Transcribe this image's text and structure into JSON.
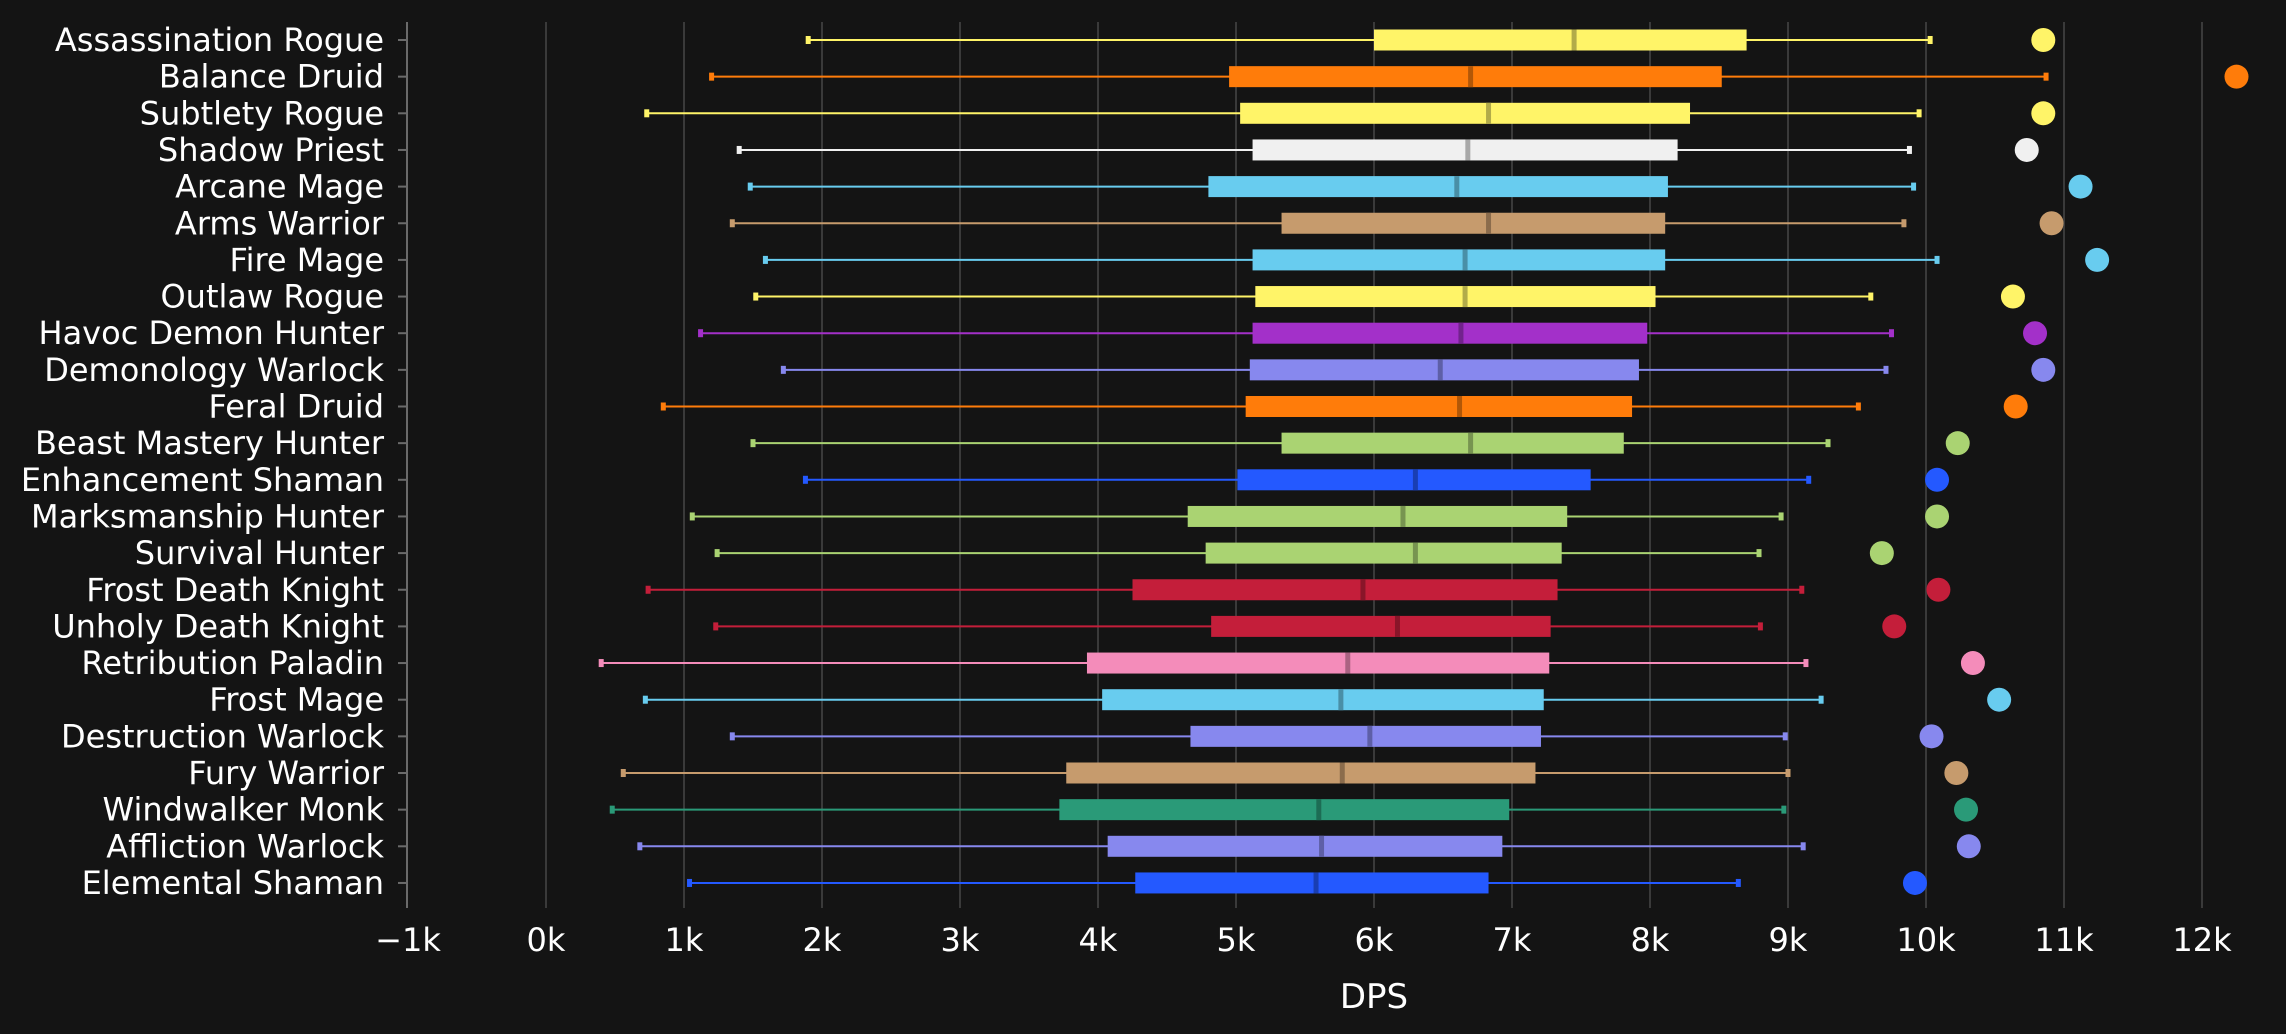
{
  "chart_data": {
    "type": "boxplot-horizontal",
    "xlabel": "DPS",
    "xlim": [
      -1000,
      12500
    ],
    "x_ticks": [
      {
        "value": -1000,
        "label": "−1k"
      },
      {
        "value": 0,
        "label": "0k"
      },
      {
        "value": 1000,
        "label": "1k"
      },
      {
        "value": 2000,
        "label": "2k"
      },
      {
        "value": 3000,
        "label": "3k"
      },
      {
        "value": 4000,
        "label": "4k"
      },
      {
        "value": 5000,
        "label": "5k"
      },
      {
        "value": 6000,
        "label": "6k"
      },
      {
        "value": 7000,
        "label": "7k"
      },
      {
        "value": 8000,
        "label": "8k"
      },
      {
        "value": 9000,
        "label": "9k"
      },
      {
        "value": 10000,
        "label": "10k"
      },
      {
        "value": 11000,
        "label": "11k"
      },
      {
        "value": 12000,
        "label": "12k"
      }
    ],
    "grid": "vertical",
    "series": [
      {
        "name": "Assassination Rogue",
        "color": "#FFF468",
        "min": 1900,
        "q1": 6000,
        "median": 7450,
        "q3": 8700,
        "max": 10030,
        "top": 10850
      },
      {
        "name": "Balance Druid",
        "color": "#FF7C0A",
        "min": 1200,
        "q1": 4950,
        "median": 6700,
        "q3": 8520,
        "max": 10870,
        "top": 12250
      },
      {
        "name": "Subtlety Rogue",
        "color": "#FFF468",
        "min": 730,
        "q1": 5030,
        "median": 6830,
        "q3": 8290,
        "max": 9950,
        "top": 10850
      },
      {
        "name": "Shadow Priest",
        "color": "#F0F0F0",
        "min": 1400,
        "q1": 5120,
        "median": 6680,
        "q3": 8200,
        "max": 9880,
        "top": 10730
      },
      {
        "name": "Arcane Mage",
        "color": "#68CCEF",
        "min": 1480,
        "q1": 4800,
        "median": 6600,
        "q3": 8130,
        "max": 9910,
        "top": 11120
      },
      {
        "name": "Arms Warrior",
        "color": "#C69B6D",
        "min": 1350,
        "q1": 5330,
        "median": 6830,
        "q3": 8110,
        "max": 9840,
        "top": 10910
      },
      {
        "name": "Fire Mage",
        "color": "#68CCEF",
        "min": 1590,
        "q1": 5120,
        "median": 6660,
        "q3": 8110,
        "max": 10080,
        "top": 11240
      },
      {
        "name": "Outlaw Rogue",
        "color": "#FFF468",
        "min": 1520,
        "q1": 5140,
        "median": 6660,
        "q3": 8040,
        "max": 9600,
        "top": 10630
      },
      {
        "name": "Havoc Demon Hunter",
        "color": "#A330C9",
        "min": 1120,
        "q1": 5120,
        "median": 6630,
        "q3": 7980,
        "max": 9750,
        "top": 10790
      },
      {
        "name": "Demonology Warlock",
        "color": "#8788EE",
        "min": 1720,
        "q1": 5100,
        "median": 6480,
        "q3": 7920,
        "max": 9710,
        "top": 10850
      },
      {
        "name": "Feral Druid",
        "color": "#FF7C0A",
        "min": 850,
        "q1": 5070,
        "median": 6620,
        "q3": 7870,
        "max": 9510,
        "top": 10650
      },
      {
        "name": "Beast Mastery Hunter",
        "color": "#AAD372",
        "min": 1500,
        "q1": 5330,
        "median": 6700,
        "q3": 7810,
        "max": 9290,
        "top": 10230
      },
      {
        "name": "Enhancement Shaman",
        "color": "#2459FF",
        "min": 1880,
        "q1": 5010,
        "median": 6300,
        "q3": 7570,
        "max": 9150,
        "top": 10080
      },
      {
        "name": "Marksmanship Hunter",
        "color": "#AAD372",
        "min": 1060,
        "q1": 4650,
        "median": 6210,
        "q3": 7400,
        "max": 8950,
        "top": 10080
      },
      {
        "name": "Survival Hunter",
        "color": "#AAD372",
        "min": 1240,
        "q1": 4780,
        "median": 6300,
        "q3": 7360,
        "max": 8790,
        "top": 9680
      },
      {
        "name": "Frost Death Knight",
        "color": "#C41E3A",
        "min": 740,
        "q1": 4250,
        "median": 5920,
        "q3": 7330,
        "max": 9100,
        "top": 10090
      },
      {
        "name": "Unholy Death Knight",
        "color": "#C41E3A",
        "min": 1230,
        "q1": 4820,
        "median": 6170,
        "q3": 7280,
        "max": 8800,
        "top": 9770
      },
      {
        "name": "Retribution Paladin",
        "color": "#F48CBA",
        "min": 400,
        "q1": 3920,
        "median": 5810,
        "q3": 7270,
        "max": 9130,
        "top": 10340
      },
      {
        "name": "Frost Mage",
        "color": "#68CCEF",
        "min": 720,
        "q1": 4030,
        "median": 5760,
        "q3": 7230,
        "max": 9240,
        "top": 10530
      },
      {
        "name": "Destruction Warlock",
        "color": "#8788EE",
        "min": 1350,
        "q1": 4670,
        "median": 5970,
        "q3": 7210,
        "max": 8980,
        "top": 10040
      },
      {
        "name": "Fury Warrior",
        "color": "#C69B6D",
        "min": 560,
        "q1": 3770,
        "median": 5770,
        "q3": 7170,
        "max": 9000,
        "top": 10220
      },
      {
        "name": "Windwalker Monk",
        "color": "#2A9A78",
        "min": 480,
        "q1": 3720,
        "median": 5600,
        "q3": 6980,
        "max": 8970,
        "top": 10290
      },
      {
        "name": "Affliction Warlock",
        "color": "#8788EE",
        "min": 680,
        "q1": 4070,
        "median": 5620,
        "q3": 6930,
        "max": 9110,
        "top": 10310
      },
      {
        "name": "Elemental Shaman",
        "color": "#2459FF",
        "min": 1040,
        "q1": 4270,
        "median": 5580,
        "q3": 6830,
        "max": 8640,
        "top": 9920
      }
    ]
  },
  "colors": {
    "background": "#141414",
    "grid": "#3a3a3a",
    "axis": "#6a6a6a",
    "text": "#ffffff"
  }
}
